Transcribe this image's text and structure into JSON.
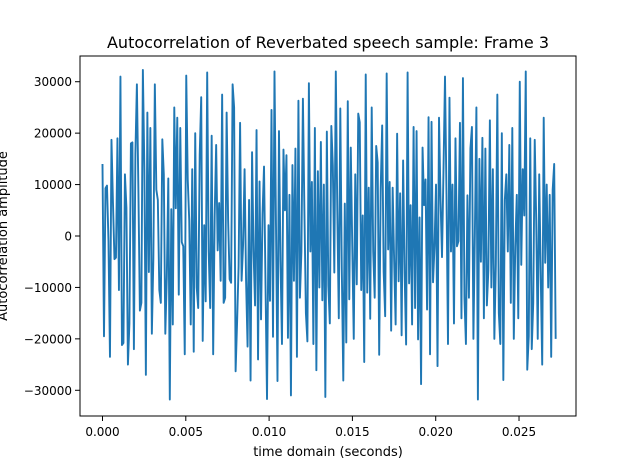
{
  "chart_data": {
    "type": "line",
    "title": "Autocorrelation of Reverbated speech sample: Frame 3",
    "xlabel": "time domain (seconds)",
    "ylabel": "Autocorrelation amplitude",
    "xlim": [
      -0.00135,
      0.02842
    ],
    "ylim": [
      -35000,
      35000
    ],
    "x_ticks": [
      0.0,
      0.005,
      0.01,
      0.015,
      0.02,
      0.025
    ],
    "x_tick_labels": [
      "0.000",
      "0.005",
      "0.010",
      "0.015",
      "0.020",
      "0.025"
    ],
    "y_ticks": [
      -30000,
      -20000,
      -10000,
      0,
      10000,
      20000,
      30000
    ],
    "y_tick_labels": [
      "−30000",
      "−20000",
      "−10000",
      "0",
      "10000",
      "20000",
      "30000"
    ],
    "grid": false,
    "line_color": "#1f77b4",
    "series": [
      {
        "x_start": 0.0,
        "x_end": 0.0272,
        "values": [
          14000,
          -19500,
          9300,
          9800,
          -1000,
          -23500,
          18700,
          6500,
          -4500,
          -4200,
          19000,
          -10500,
          31000,
          -21200,
          -20800,
          12000,
          5500,
          -25000,
          -17000,
          18000,
          18200,
          -22000,
          16000,
          29500,
          9000,
          -14500,
          -13000,
          32300,
          13000,
          -27000,
          24000,
          -7000,
          21000,
          -19000,
          -4500,
          29500,
          9000,
          7000,
          -10500,
          -13000,
          18800,
          12000,
          -19000,
          -8000,
          11200,
          -31800,
          5200,
          -17200,
          25000,
          5400,
          23000,
          -11400,
          21000,
          -1200,
          -2000,
          -23000,
          31200,
          11000,
          3000,
          -17200,
          13000,
          -22500,
          20000,
          -10000,
          -14000,
          15800,
          27000,
          -20400,
          2100,
          -12700,
          31800,
          -3000,
          -14000,
          19500,
          -23000,
          3900,
          17700,
          -2800,
          6400,
          -8700,
          27500,
          -13000,
          -12000,
          24000,
          3000,
          -8400,
          -9100,
          29500,
          25000,
          -26300,
          -16700,
          -5900,
          22000,
          -8700,
          -1700,
          13000,
          -8700,
          -21500,
          7000,
          -28100,
          16300,
          -3000,
          -13500,
          20600,
          -24000,
          10600,
          -16200,
          4300,
          13500,
          -9600,
          -31700,
          2100,
          -12600,
          24500,
          -19600,
          32000,
          2000,
          -28200,
          20400,
          -4600,
          -21000,
          16800,
          5000,
          15700,
          -19800,
          8000,
          -31000,
          13800,
          -8700,
          17000,
          -23500,
          26300,
          -12000,
          -3000,
          26700,
          5000,
          -15000,
          -20500,
          29700,
          -3000,
          10500,
          -21000,
          21000,
          -26100,
          12600,
          -10000,
          18300,
          -12500,
          10000,
          -31300,
          20300,
          -9700,
          -17000,
          21400,
          13700,
          -7100,
          32000,
          4700,
          -16000,
          24800,
          -6500,
          -28100,
          6300,
          -20700,
          26200,
          -12300,
          17200,
          -2100,
          -20000,
          12000,
          -9400,
          23800,
          22100,
          -10500,
          4000,
          -24500,
          31400,
          -11000,
          9400,
          -16100,
          25000,
          -3000,
          -12000,
          17500,
          14300,
          -23100,
          9100,
          21500,
          -7000,
          -15600,
          31600,
          -2600,
          10500,
          -18400,
          9400,
          -4800,
          -17200,
          19900,
          -8800,
          8300,
          -19300,
          14700,
          -7100,
          -21100,
          31800,
          -9200,
          6000,
          -17200,
          21200,
          -14000,
          20400,
          -20100,
          3600,
          -28800,
          17200,
          6000,
          11000,
          -14300,
          23100,
          -23000,
          22200,
          -9000,
          -2000,
          10000,
          -25300,
          23000,
          7300,
          -4100,
          12900,
          31000,
          8000,
          -21000,
          26900,
          -3000,
          10000,
          -17000,
          19000,
          -2000,
          -1000,
          22000,
          -16000,
          30700,
          -12000,
          -21000,
          7900,
          -12000,
          17000,
          21200,
          -20000,
          1000,
          25000,
          -31800,
          15000,
          -5000,
          19100,
          -16000,
          17000,
          -13500,
          -6600,
          22500,
          -10000,
          13000,
          -20000,
          -5500,
          27500,
          -15000,
          -21000,
          20000,
          -28000,
          7000,
          12000,
          -3000,
          17700,
          -13000,
          21000,
          -20000,
          -2000,
          8000,
          -16000,
          30000,
          -5600,
          13000,
          4000,
          32000,
          -26000,
          -19500,
          19000,
          -22000,
          -13000,
          18700,
          2900,
          -20000,
          12000,
          -7500,
          -25000,
          23000,
          -5200,
          10000,
          -10000,
          8000,
          -23500,
          9000,
          14000,
          -20000
        ]
      }
    ]
  }
}
